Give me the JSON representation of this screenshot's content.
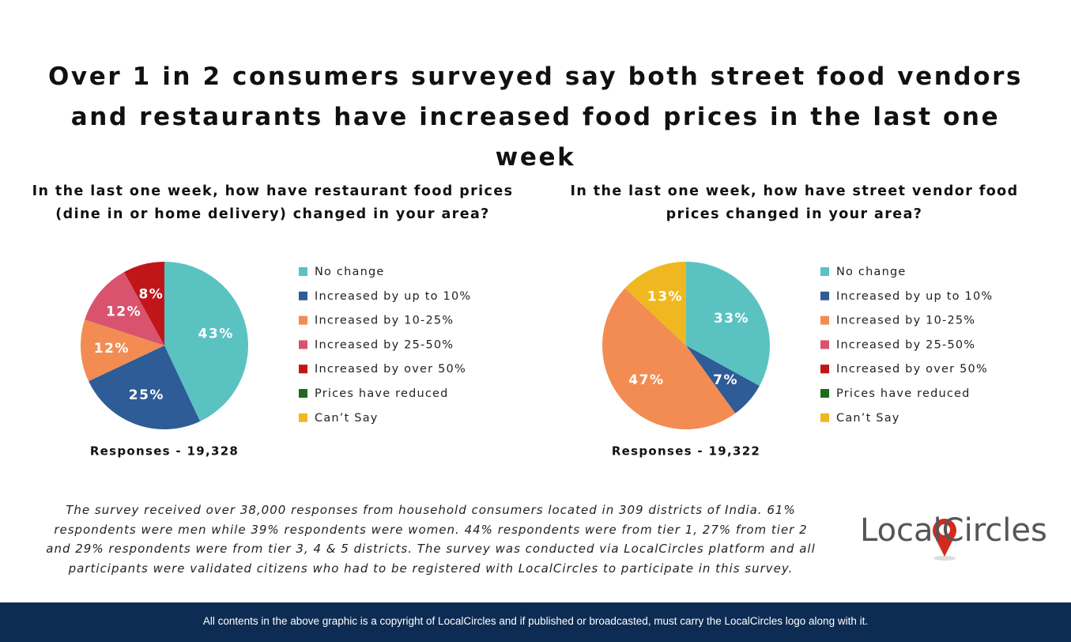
{
  "title": "Over 1 in 2 consumers surveyed say both street food vendors and restaurants have increased food prices in the last one week",
  "chart_data": [
    {
      "type": "pie",
      "title": "In the last one week, how have restaurant food prices (dine in or home delivery) changed in your area?",
      "categories": [
        "No change",
        "Increased by up to 10%",
        "Increased by 10-25%",
        "Increased by 25-50%",
        "Increased by over 50%",
        "Prices have reduced",
        "Can’t Say"
      ],
      "values": [
        43,
        25,
        12,
        12,
        8,
        0,
        0
      ],
      "value_labels": [
        "43%",
        "25%",
        "12%",
        "12%",
        "8%",
        null,
        null
      ],
      "colors": [
        "#5bc2c2",
        "#2e5c96",
        "#f28c52",
        "#d9536e",
        "#c0161a",
        "#1e6b1e",
        "#f0b820"
      ],
      "note": "Responses - 19,328"
    },
    {
      "type": "pie",
      "title": "In the last one week, how have street vendor food prices changed in your area?",
      "categories": [
        "No change",
        "Increased by up to 10%",
        "Increased by 10-25%",
        "Increased by 25-50%",
        "Increased by over 50%",
        "Prices have reduced",
        "Can’t Say"
      ],
      "values": [
        33,
        7,
        47,
        0,
        0,
        0,
        13
      ],
      "value_labels": [
        "33%",
        "7%",
        "47%",
        null,
        null,
        null,
        "13%"
      ],
      "colors": [
        "#5bc2c2",
        "#2e5c96",
        "#f28c52",
        "#d9536e",
        "#c0161a",
        "#1e6b1e",
        "#f0b820"
      ],
      "note": "Responses - 19,322"
    }
  ],
  "footnote": "The survey received over 38,000 responses from household consumers located in 309 districts of India. 61% respondents were men while 39% respondents were women. 44% respondents were from tier 1, 27% from tier 2 and 29% respondents were from tier 3, 4 & 5 districts. The survey was conducted via LocalCircles platform and all participants were validated citizens who had to be registered with LocalCircles to participate in this survey.",
  "logo": "LocalCircles",
  "footer": "All contents in the above graphic is a copyright of LocalCircles and if published or broadcasted, must carry the LocalCircles logo along with it."
}
